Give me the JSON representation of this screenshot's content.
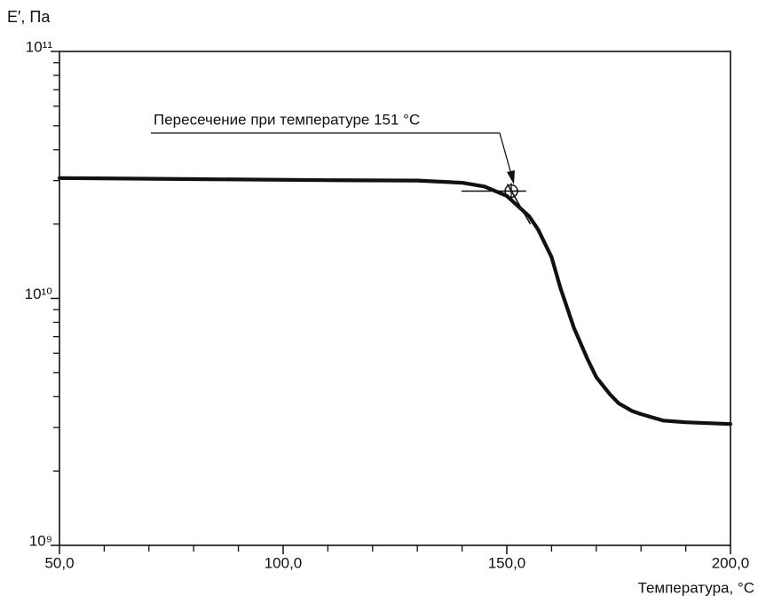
{
  "chart_data": {
    "type": "line",
    "ylabel": "E′, Па",
    "xlabel": "Температура, °С",
    "xlim": [
      50,
      200
    ],
    "xticks": [
      {
        "value": 50,
        "label": "50,0"
      },
      {
        "value": 100,
        "label": "100,0"
      },
      {
        "value": 150,
        "label": "150,0"
      },
      {
        "value": 200,
        "label": "200,0"
      }
    ],
    "xminor": [
      60,
      70,
      80,
      90,
      110,
      120,
      130,
      140,
      160,
      170,
      180,
      190
    ],
    "ylim": [
      1000000000,
      100000000000
    ],
    "yticks": [
      {
        "value": 1000000000,
        "label": "10⁹"
      },
      {
        "value": 10000000000,
        "label": "10¹⁰"
      },
      {
        "value": 100000000000,
        "label": "10¹¹"
      }
    ],
    "yminor": [
      2000000000,
      3000000000,
      4000000000,
      5000000000,
      6000000000,
      7000000000,
      8000000000,
      9000000000,
      20000000000,
      30000000000,
      40000000000,
      50000000000,
      60000000000,
      70000000000,
      80000000000,
      90000000000
    ],
    "log_y": true,
    "grid": false,
    "series": [
      {
        "color": "#111111",
        "x": [
          50,
          80,
          110,
          130,
          140,
          145,
          150,
          155,
          157,
          160,
          162,
          165,
          168,
          170,
          173,
          175,
          178,
          180,
          185,
          190,
          200
        ],
        "values": [
          30700000000,
          30400000000,
          30100000000,
          30000000000,
          29400000000,
          28400000000,
          26000000000,
          21500000000,
          19000000000,
          14700000000,
          11000000000,
          7600000000,
          5700000000,
          4800000000,
          4100000000,
          3760000000,
          3500000000,
          3400000000,
          3200000000,
          3150000000,
          3100000000
        ]
      },
      {
        "color": "#111111",
        "x": [
          140,
          154.2
        ],
        "values": [
          27200000000,
          27200000000
        ]
      },
      {
        "color": "#111111",
        "x": [
          150.2,
          155.2
        ],
        "values": [
          28900000000,
          20100000000
        ]
      }
    ],
    "annotation": {
      "text": "Пересечение при температуре 151 °С",
      "x": 151,
      "y": 27200000000
    }
  }
}
